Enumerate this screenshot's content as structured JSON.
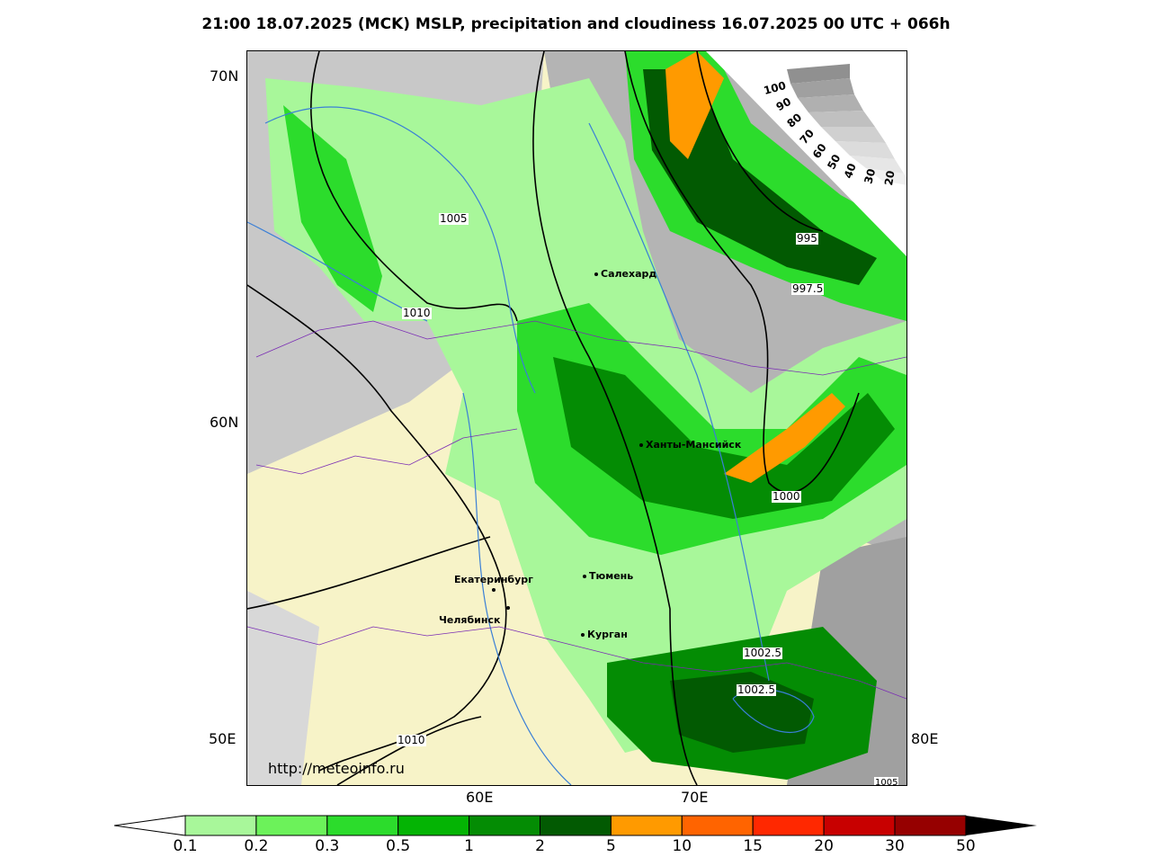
{
  "title": "21:00 18.07.2025 (MCK) MSLP, precipitation and cloudiness 16.07.2025 00 UTC + 066h",
  "credit": "http://meteoinfo.ru",
  "lat_labels": [
    "70N",
    "60N",
    "50E"
  ],
  "lon_labels": [
    "60E",
    "70E",
    "80E"
  ],
  "cities": [
    {
      "name": "Салехард"
    },
    {
      "name": "Ханты-Мансийск"
    },
    {
      "name": "Екатеринбург"
    },
    {
      "name": "Тюмень"
    },
    {
      "name": "Челябинск"
    },
    {
      "name": "Курган"
    }
  ],
  "isobar_labels": [
    "1005",
    "1010",
    "995",
    "997.5",
    "1000",
    "1002.5",
    "1002.5",
    "1010",
    "1005"
  ],
  "cloudiness_scale": [
    "100",
    "90",
    "80",
    "70",
    "60",
    "50",
    "40",
    "30",
    "20"
  ],
  "colorbar": {
    "ticks": [
      "0.1",
      "0.2",
      "0.3",
      "0.5",
      "1",
      "2",
      "5",
      "10",
      "15",
      "20",
      "30",
      "50"
    ],
    "colors": [
      "#a8f79a",
      "#6cf25a",
      "#2cdc2c",
      "#04b404",
      "#048c04",
      "#025a02",
      "#ff9a00",
      "#ff6400",
      "#ff2800",
      "#c80000",
      "#960000"
    ]
  }
}
